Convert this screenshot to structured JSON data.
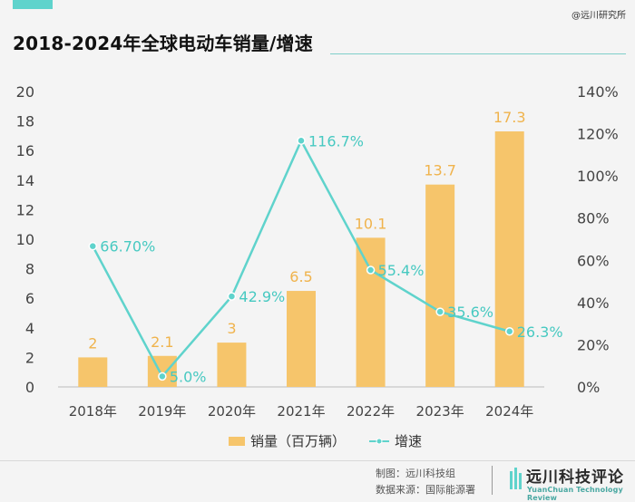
{
  "header": {
    "title": "2018-2024年全球电动车销量/增速",
    "watermark": "@远川研究所"
  },
  "colors": {
    "bar": "#f6c56b",
    "line": "#5fd3cc",
    "bar_label": "#f0b34c",
    "line_label": "#47c9c1",
    "axis_text": "#444444",
    "grid": "#dddddd"
  },
  "chart_data": {
    "type": "bar",
    "title": "2018-2024年全球电动车销量/增速",
    "categories": [
      "2018年",
      "2019年",
      "2020年",
      "2021年",
      "2022年",
      "2023年",
      "2024年"
    ],
    "series": [
      {
        "name": "销量（百万辆）",
        "type": "bar",
        "axis": "left",
        "values": [
          2,
          2.1,
          3,
          6.5,
          10.1,
          13.7,
          17.3
        ],
        "labels": [
          "2",
          "2.1",
          "3",
          "6.5",
          "10.1",
          "13.7",
          "17.3"
        ]
      },
      {
        "name": "增速",
        "type": "line",
        "axis": "right",
        "values": [
          66.7,
          5.0,
          42.9,
          116.7,
          55.4,
          35.6,
          26.3
        ],
        "labels": [
          "66.70%",
          "5.0%",
          "42.9%",
          "116.7%",
          "55.4%",
          "35.6%",
          "26.3%"
        ]
      }
    ],
    "y_left": {
      "min": 0,
      "max": 20,
      "ticks": [
        "0",
        "2",
        "4",
        "6",
        "8",
        "10",
        "12",
        "14",
        "16",
        "18",
        "20"
      ]
    },
    "y_right": {
      "min": 0,
      "max": 140,
      "ticks": [
        "0%",
        "20%",
        "40%",
        "60%",
        "80%",
        "100%",
        "120%",
        "140%"
      ]
    },
    "grid": false,
    "legend": "bottom-center"
  },
  "footer": {
    "credit_maker": "制图：远川科技组",
    "credit_source": "数据来源：国际能源署",
    "brand_name": "远川科技评论",
    "brand_sub": "YuanChuan Technology Review"
  }
}
